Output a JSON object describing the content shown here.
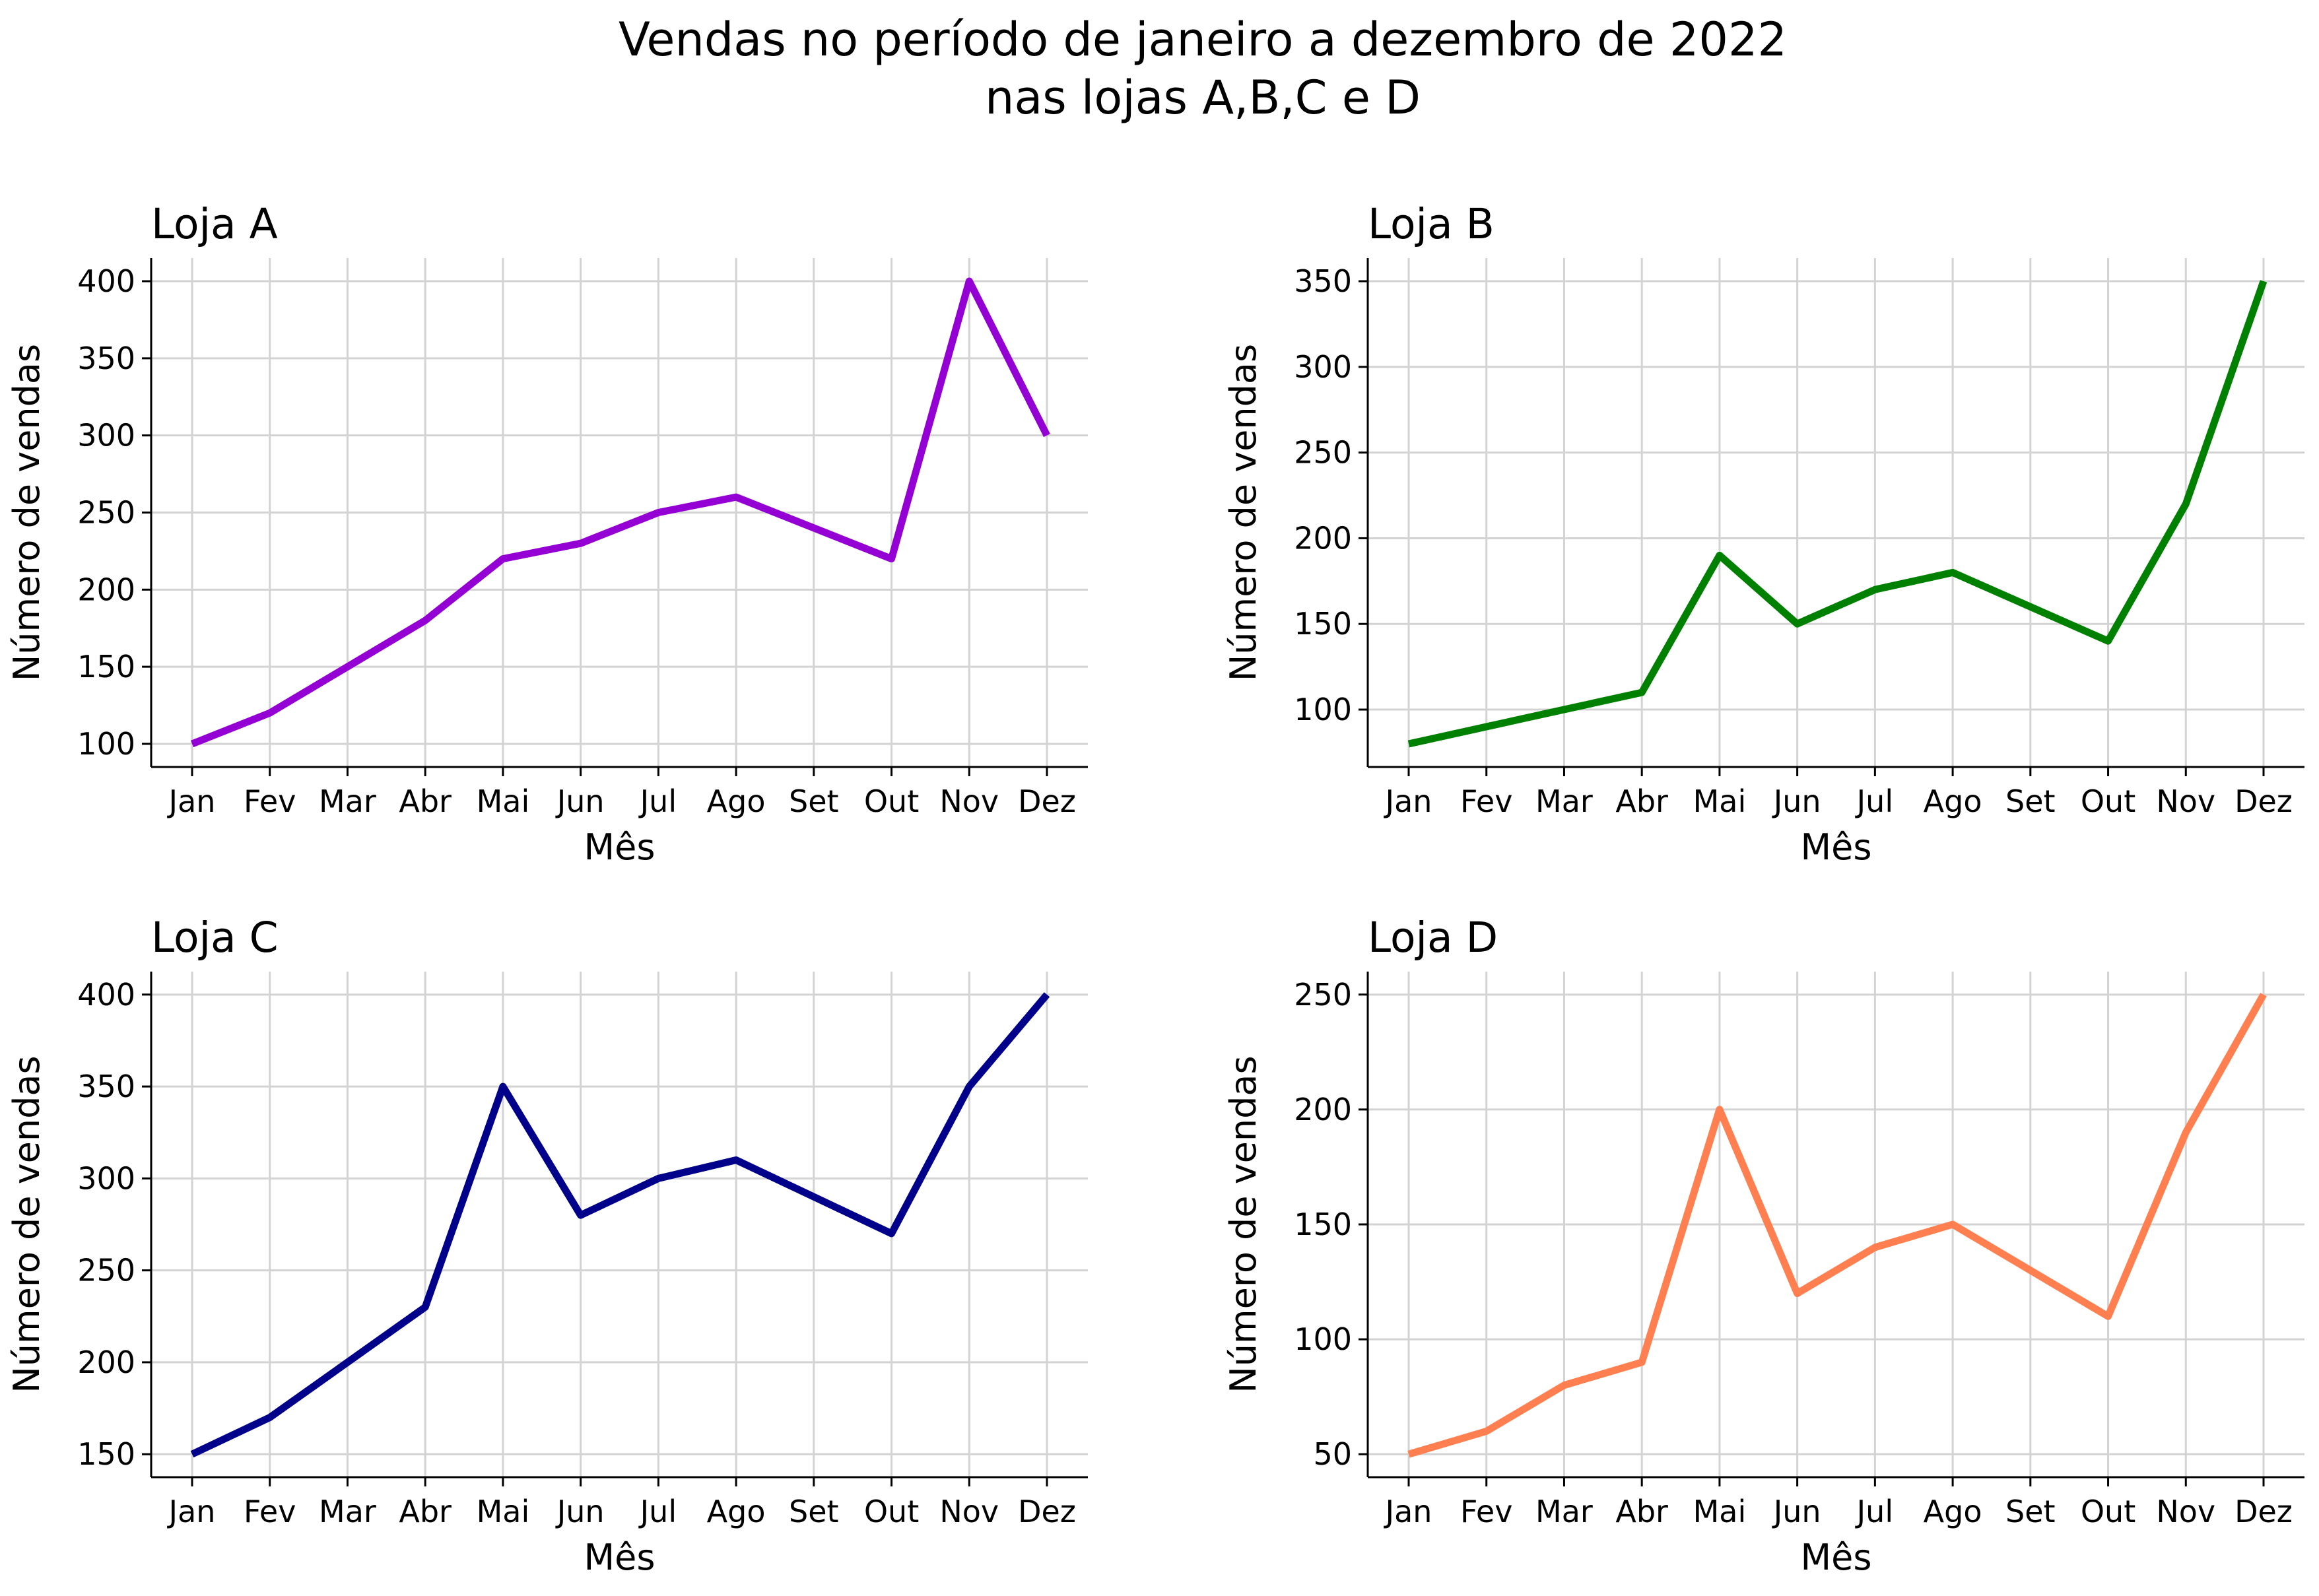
{
  "figure": {
    "title_line1": "Vendas no período de janeiro a dezembro de 2022",
    "title_line2": "nas lojas A,B,C e D"
  },
  "chart_data": [
    {
      "type": "line",
      "title": "Loja A",
      "xlabel": "Mês",
      "ylabel": "Número de vendas",
      "categories": [
        "Jan",
        "Fev",
        "Mar",
        "Abr",
        "Mai",
        "Jun",
        "Jul",
        "Ago",
        "Set",
        "Out",
        "Nov",
        "Dez"
      ],
      "values": [
        100,
        120,
        150,
        180,
        220,
        230,
        250,
        260,
        240,
        220,
        400,
        300
      ],
      "color": "#9400D3",
      "ylim": [
        85,
        415
      ],
      "yticks": [
        100,
        150,
        200,
        250,
        300,
        350,
        400
      ],
      "grid": true
    },
    {
      "type": "line",
      "title": "Loja B",
      "xlabel": "Mês",
      "ylabel": "Número de vendas",
      "categories": [
        "Jan",
        "Fev",
        "Mar",
        "Abr",
        "Mai",
        "Jun",
        "Jul",
        "Ago",
        "Set",
        "Out",
        "Nov",
        "Dez"
      ],
      "values": [
        80,
        90,
        100,
        110,
        190,
        150,
        170,
        180,
        160,
        140,
        220,
        350
      ],
      "color": "#008000",
      "ylim": [
        66.5,
        363.5
      ],
      "yticks": [
        100,
        150,
        200,
        250,
        300,
        350
      ],
      "grid": true
    },
    {
      "type": "line",
      "title": "Loja C",
      "xlabel": "Mês",
      "ylabel": "Número de vendas",
      "categories": [
        "Jan",
        "Fev",
        "Mar",
        "Abr",
        "Mai",
        "Jun",
        "Jul",
        "Ago",
        "Set",
        "Out",
        "Nov",
        "Dez"
      ],
      "values": [
        150,
        170,
        200,
        230,
        350,
        280,
        300,
        310,
        290,
        270,
        350,
        400
      ],
      "color": "#00008B",
      "ylim": [
        137.5,
        412.5
      ],
      "yticks": [
        150,
        200,
        250,
        300,
        350,
        400
      ],
      "grid": true
    },
    {
      "type": "line",
      "title": "Loja D",
      "xlabel": "Mês",
      "ylabel": "Número de vendas",
      "categories": [
        "Jan",
        "Fev",
        "Mar",
        "Abr",
        "Mai",
        "Jun",
        "Jul",
        "Ago",
        "Set",
        "Out",
        "Nov",
        "Dez"
      ],
      "values": [
        50,
        60,
        80,
        90,
        200,
        120,
        140,
        150,
        130,
        110,
        190,
        250
      ],
      "color": "#FF7F50",
      "ylim": [
        40,
        260
      ],
      "yticks": [
        50,
        100,
        150,
        200,
        250
      ],
      "grid": true
    }
  ]
}
